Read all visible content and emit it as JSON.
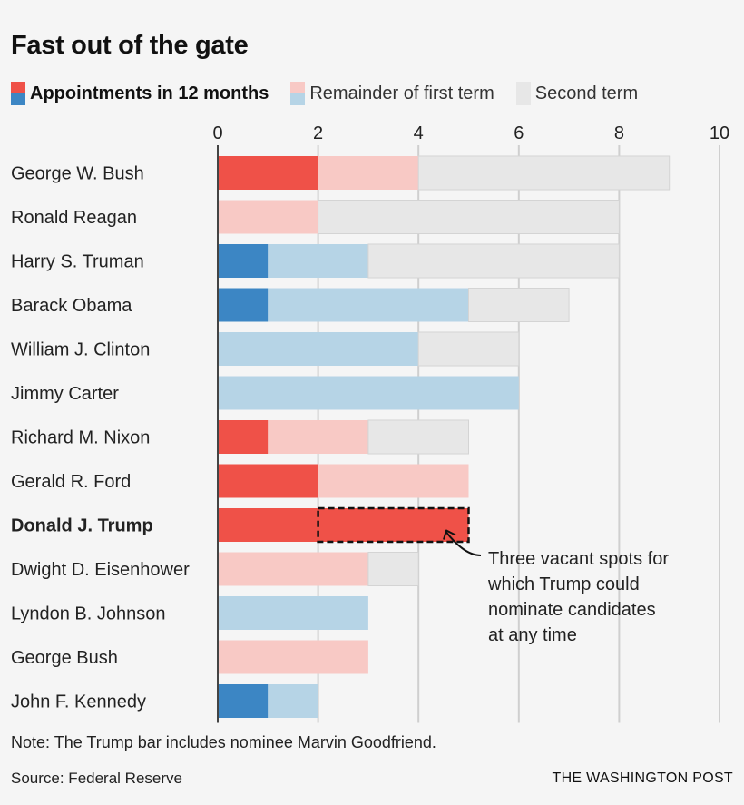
{
  "chart_data": {
    "type": "bar",
    "orientation": "horizontal",
    "stacked": true,
    "title": "Fast out of the gate",
    "xlim": [
      0,
      10
    ],
    "xticks": [
      0,
      2,
      4,
      6,
      8,
      10
    ],
    "legend": [
      {
        "label": "Appointments in 12 months",
        "colors": [
          "#ef5148",
          "#3c86c4"
        ],
        "strong": true
      },
      {
        "label": "Remainder of first term",
        "colors": [
          "#f8c9c5",
          "#b6d4e6"
        ],
        "strong": false
      },
      {
        "label": "Second term",
        "colors": [
          "#e7e7e7",
          "#e7e7e7"
        ],
        "strong": false
      }
    ],
    "party_colors": {
      "R": {
        "appointments": "#ef5148",
        "remainder": "#f8c9c5",
        "second": "#e7e7e7"
      },
      "D": {
        "appointments": "#3c86c4",
        "remainder": "#b6d4e6",
        "second": "#e7e7e7"
      }
    },
    "categories": [
      "George W. Bush",
      "Ronald Reagan",
      "Harry S. Truman",
      "Barack Obama",
      "William J. Clinton",
      "Jimmy Carter",
      "Richard M. Nixon",
      "Gerald R. Ford",
      "Donald J. Trump",
      "Dwight D. Eisenhower",
      "Lyndon B. Johnson",
      "George Bush",
      "John F. Kennedy"
    ],
    "rows": [
      {
        "name": "George W. Bush",
        "party": "R",
        "appointments": 2,
        "remainder": 2,
        "second": 5
      },
      {
        "name": "Ronald Reagan",
        "party": "R",
        "appointments": 0,
        "remainder": 2,
        "second": 6
      },
      {
        "name": "Harry S. Truman",
        "party": "D",
        "appointments": 1,
        "remainder": 2,
        "second": 5
      },
      {
        "name": "Barack Obama",
        "party": "D",
        "appointments": 1,
        "remainder": 4,
        "second": 2
      },
      {
        "name": "William J. Clinton",
        "party": "D",
        "appointments": 0,
        "remainder": 4,
        "second": 2
      },
      {
        "name": "Jimmy Carter",
        "party": "D",
        "appointments": 0,
        "remainder": 6,
        "second": 0
      },
      {
        "name": "Richard M. Nixon",
        "party": "R",
        "appointments": 1,
        "remainder": 2,
        "second": 2
      },
      {
        "name": "Gerald R. Ford",
        "party": "R",
        "appointments": 2,
        "remainder": 3,
        "second": 0
      },
      {
        "name": "Donald J. Trump",
        "party": "R",
        "appointments": 2,
        "vacant": 3,
        "remainder": 0,
        "second": 0,
        "highlight": true
      },
      {
        "name": "Dwight D. Eisenhower",
        "party": "R",
        "appointments": 0,
        "remainder": 3,
        "second": 1
      },
      {
        "name": "Lyndon B. Johnson",
        "party": "D",
        "appointments": 0,
        "remainder": 3,
        "second": 0
      },
      {
        "name": "George Bush",
        "party": "R",
        "appointments": 0,
        "remainder": 3,
        "second": 0
      },
      {
        "name": "John F. Kennedy",
        "party": "D",
        "appointments": 1,
        "remainder": 1,
        "second": 0
      }
    ],
    "annotation": {
      "target": "Donald J. Trump",
      "lines": [
        "Three vacant spots for",
        "which Trump could",
        "nominate candidates",
        "at any time"
      ]
    }
  },
  "note": "Note: The Trump bar includes nominee Marvin Goodfriend.",
  "source": "Source: Federal Reserve",
  "brand": "THE WASHINGTON POST"
}
